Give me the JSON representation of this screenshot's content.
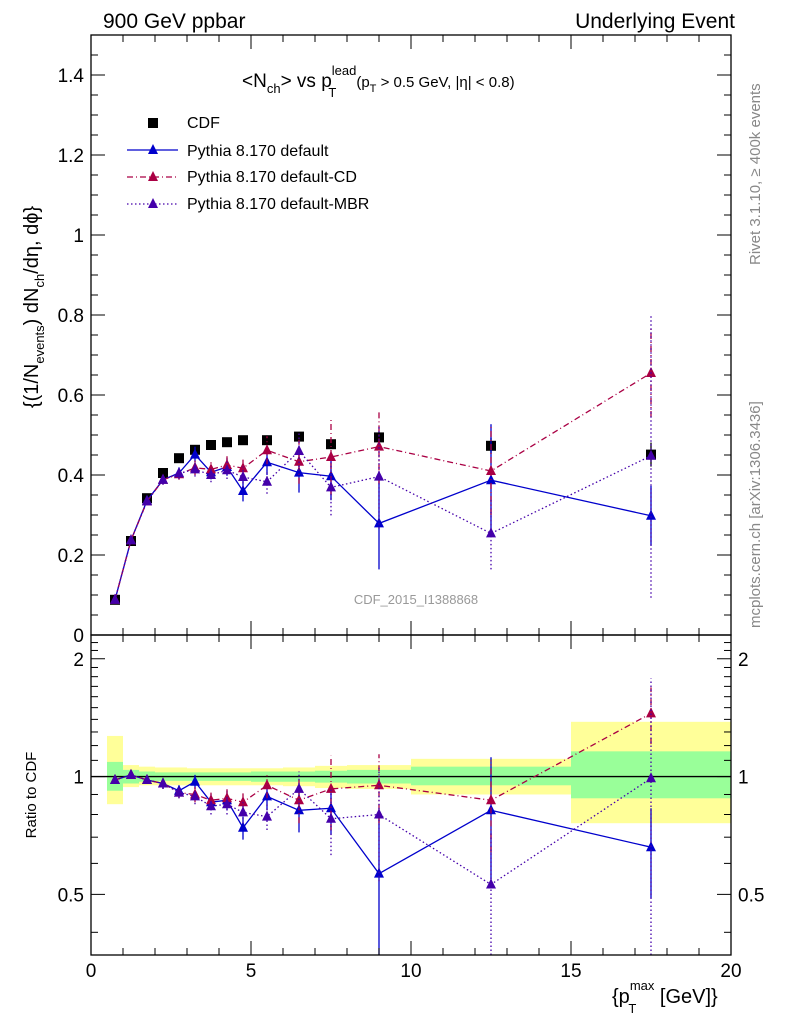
{
  "header": {
    "left_title": "900 GeV ppbar",
    "right_title": "Underlying Event"
  },
  "side_labels": {
    "rivet": "Rivet 3.1.10, ≥ 400k events",
    "mcplots": "mcplots.cern.ch [arXiv:1306.3436]"
  },
  "chart_data": [
    {
      "type": "scatter",
      "panel": "main",
      "title_parts": {
        "a": "<N",
        "a_sub": "ch",
        "b": "> vs p",
        "b_sup": "lead",
        "b_sub": "T",
        "c": "(p",
        "c_sub": "T",
        "d": " > 0.5 GeV, |η| < 0.8)"
      },
      "ylabel_parts": {
        "a": "{(1/N",
        "a_sub": "events",
        "b": ") dN",
        "b_sub": "ch",
        "c": "/dη, dϕ}"
      },
      "watermark": "CDF_2015_I1388868",
      "xlim": [
        0,
        20
      ],
      "ylim": [
        0,
        1.5
      ],
      "x_ticks": [
        0,
        5,
        10,
        15,
        20
      ],
      "y_ticks": [
        0,
        0.2,
        0.4,
        0.6,
        0.8,
        1,
        1.2,
        1.4
      ],
      "y_tick_labels": [
        "0",
        "0.2",
        "0.4",
        "0.6",
        "0.8",
        "1",
        "1.2",
        "1.4"
      ],
      "legend_position": "top-left",
      "series": [
        {
          "name": "CDF",
          "color": "#000000",
          "marker": "square",
          "x": [
            0.75,
            1.25,
            1.75,
            2.25,
            2.75,
            3.25,
            3.75,
            4.25,
            4.75,
            5.5,
            6.5,
            7.5,
            9.0,
            12.5,
            17.5
          ],
          "y": [
            0.088,
            0.235,
            0.342,
            0.405,
            0.442,
            0.463,
            0.475,
            0.482,
            0.487,
            0.487,
            0.496,
            0.477,
            0.494,
            0.473,
            0.451
          ],
          "yerr": [
            0.003,
            0.004,
            0.005,
            0.006,
            0.006,
            0.007,
            0.007,
            0.008,
            0.008,
            0.009,
            0.01,
            0.011,
            0.014,
            0.02,
            0.03
          ]
        },
        {
          "name": "Pythia 8.170 default",
          "color": "#0000cc",
          "marker": "triangle",
          "line": "solid",
          "x": [
            0.75,
            1.25,
            1.75,
            2.25,
            2.75,
            3.25,
            3.75,
            4.25,
            4.75,
            5.5,
            6.5,
            7.5,
            9.0,
            12.5,
            17.5
          ],
          "y": [
            0.088,
            0.237,
            0.336,
            0.388,
            0.405,
            0.451,
            0.407,
            0.42,
            0.36,
            0.432,
            0.406,
            0.397,
            0.279,
            0.387,
            0.298
          ],
          "yerr": [
            0.003,
            0.004,
            0.008,
            0.012,
            0.014,
            0.02,
            0.018,
            0.022,
            0.026,
            0.032,
            0.05,
            0.06,
            0.115,
            0.14,
            0.075
          ]
        },
        {
          "name": "Pythia 8.170 default-CD",
          "color": "#aa0044",
          "marker": "triangle",
          "line": "dashdot",
          "x": [
            0.75,
            1.25,
            1.75,
            2.25,
            2.75,
            3.25,
            3.75,
            4.25,
            4.75,
            5.5,
            6.5,
            7.5,
            9.0,
            12.5,
            17.5
          ],
          "y": [
            0.088,
            0.237,
            0.334,
            0.388,
            0.402,
            0.418,
            0.414,
            0.425,
            0.417,
            0.462,
            0.433,
            0.445,
            0.471,
            0.41,
            0.655
          ],
          "yerr": [
            0.003,
            0.004,
            0.008,
            0.012,
            0.014,
            0.018,
            0.018,
            0.022,
            0.026,
            0.035,
            0.055,
            0.095,
            0.092,
            0.11,
            0.11
          ]
        },
        {
          "name": "Pythia 8.170 default-MBR",
          "color": "#4400aa",
          "marker": "triangle",
          "line": "dotted",
          "x": [
            0.75,
            1.25,
            1.75,
            2.25,
            2.75,
            3.25,
            3.75,
            4.25,
            4.75,
            5.5,
            6.5,
            7.5,
            9.0,
            12.5,
            17.5
          ],
          "y": [
            0.088,
            0.237,
            0.334,
            0.388,
            0.404,
            0.414,
            0.4,
            0.412,
            0.395,
            0.383,
            0.46,
            0.369,
            0.396,
            0.254,
            0.448
          ],
          "yerr": [
            0.003,
            0.004,
            0.008,
            0.012,
            0.014,
            0.018,
            0.018,
            0.022,
            0.026,
            0.03,
            0.05,
            0.07,
            0.13,
            0.09,
            0.355
          ]
        }
      ]
    },
    {
      "type": "scatter",
      "panel": "ratio",
      "ylabel": "Ratio to CDF",
      "xlabel_parts": {
        "a": "{p",
        "a_sup": "max",
        "a_sub": "T",
        "b": " [GeV]}"
      },
      "xlim": [
        0,
        20
      ],
      "ylim": [
        0.35,
        2.3
      ],
      "log_y": true,
      "y_ticks": [
        0.5,
        1,
        2
      ],
      "y_tick_labels": [
        "0.5",
        "1",
        "2"
      ],
      "x_ticks": [
        0,
        5,
        10,
        15,
        20
      ],
      "x_tick_labels": [
        "0",
        "5",
        "10",
        "15",
        "20"
      ],
      "reference_line": 1,
      "bands": [
        {
          "x0": 0.5,
          "x1": 1.0,
          "green": [
            0.92,
            1.09
          ],
          "yellow": [
            0.85,
            1.27
          ]
        },
        {
          "x0": 1.0,
          "x1": 1.5,
          "green": [
            0.96,
            1.04
          ],
          "yellow": [
            0.94,
            1.07
          ]
        },
        {
          "x0": 1.5,
          "x1": 2.0,
          "green": [
            0.97,
            1.03
          ],
          "yellow": [
            0.95,
            1.06
          ]
        },
        {
          "x0": 2.0,
          "x1": 2.5,
          "green": [
            0.975,
            1.025
          ],
          "yellow": [
            0.95,
            1.055
          ]
        },
        {
          "x0": 2.5,
          "x1": 3.0,
          "green": [
            0.975,
            1.025
          ],
          "yellow": [
            0.95,
            1.055
          ]
        },
        {
          "x0": 3.0,
          "x1": 3.5,
          "green": [
            0.975,
            1.025
          ],
          "yellow": [
            0.95,
            1.05
          ]
        },
        {
          "x0": 3.5,
          "x1": 4.0,
          "green": [
            0.975,
            1.025
          ],
          "yellow": [
            0.95,
            1.05
          ]
        },
        {
          "x0": 4.0,
          "x1": 4.5,
          "green": [
            0.975,
            1.025
          ],
          "yellow": [
            0.95,
            1.05
          ]
        },
        {
          "x0": 4.5,
          "x1": 5.0,
          "green": [
            0.975,
            1.025
          ],
          "yellow": [
            0.95,
            1.05
          ]
        },
        {
          "x0": 5.0,
          "x1": 6.0,
          "green": [
            0.97,
            1.03
          ],
          "yellow": [
            0.95,
            1.05
          ]
        },
        {
          "x0": 6.0,
          "x1": 7.0,
          "green": [
            0.97,
            1.03
          ],
          "yellow": [
            0.945,
            1.055
          ]
        },
        {
          "x0": 7.0,
          "x1": 8.0,
          "green": [
            0.965,
            1.035
          ],
          "yellow": [
            0.935,
            1.065
          ]
        },
        {
          "x0": 8.0,
          "x1": 10.0,
          "green": [
            0.96,
            1.04
          ],
          "yellow": [
            0.93,
            1.07
          ]
        },
        {
          "x0": 10.0,
          "x1": 15.0,
          "green": [
            0.95,
            1.06
          ],
          "yellow": [
            0.9,
            1.11
          ]
        },
        {
          "x0": 15.0,
          "x1": 20.0,
          "green": [
            0.88,
            1.16
          ],
          "yellow": [
            0.76,
            1.38
          ]
        }
      ],
      "series": [
        {
          "name": "Pythia 8.170 default",
          "color": "#0000cc",
          "line": "solid",
          "x": [
            0.75,
            1.25,
            1.75,
            2.25,
            2.75,
            3.25,
            3.75,
            4.25,
            4.75,
            5.5,
            6.5,
            7.5,
            9.0,
            12.5,
            17.5
          ],
          "y": [
            0.98,
            1.01,
            0.98,
            0.96,
            0.92,
            0.97,
            0.86,
            0.87,
            0.74,
            0.89,
            0.82,
            0.83,
            0.565,
            0.82,
            0.66
          ],
          "yerr": [
            0.02,
            0.02,
            0.02,
            0.03,
            0.03,
            0.04,
            0.04,
            0.05,
            0.05,
            0.07,
            0.1,
            0.12,
            0.23,
            0.3,
            0.17
          ]
        },
        {
          "name": "Pythia 8.170 default-CD",
          "color": "#aa0044",
          "line": "dashdot",
          "x": [
            0.75,
            1.25,
            1.75,
            2.25,
            2.75,
            3.25,
            3.75,
            4.25,
            4.75,
            5.5,
            6.5,
            7.5,
            9.0,
            12.5,
            17.5
          ],
          "y": [
            0.98,
            1.01,
            0.98,
            0.96,
            0.91,
            0.9,
            0.87,
            0.88,
            0.86,
            0.95,
            0.87,
            0.93,
            0.95,
            0.87,
            1.45
          ],
          "yerr": [
            0.02,
            0.02,
            0.02,
            0.03,
            0.03,
            0.04,
            0.04,
            0.05,
            0.05,
            0.07,
            0.11,
            0.2,
            0.19,
            0.23,
            0.24
          ]
        },
        {
          "name": "Pythia 8.170 default-MBR",
          "color": "#4400aa",
          "line": "dotted",
          "x": [
            0.75,
            1.25,
            1.75,
            2.25,
            2.75,
            3.25,
            3.75,
            4.25,
            4.75,
            5.5,
            6.5,
            7.5,
            9.0,
            12.5,
            17.5
          ],
          "y": [
            0.98,
            1.01,
            0.98,
            0.96,
            0.91,
            0.89,
            0.84,
            0.85,
            0.81,
            0.79,
            0.93,
            0.78,
            0.8,
            0.53,
            0.99
          ],
          "yerr": [
            0.02,
            0.02,
            0.02,
            0.03,
            0.03,
            0.04,
            0.04,
            0.05,
            0.05,
            0.06,
            0.1,
            0.15,
            0.26,
            0.19,
            0.79
          ]
        }
      ]
    }
  ]
}
